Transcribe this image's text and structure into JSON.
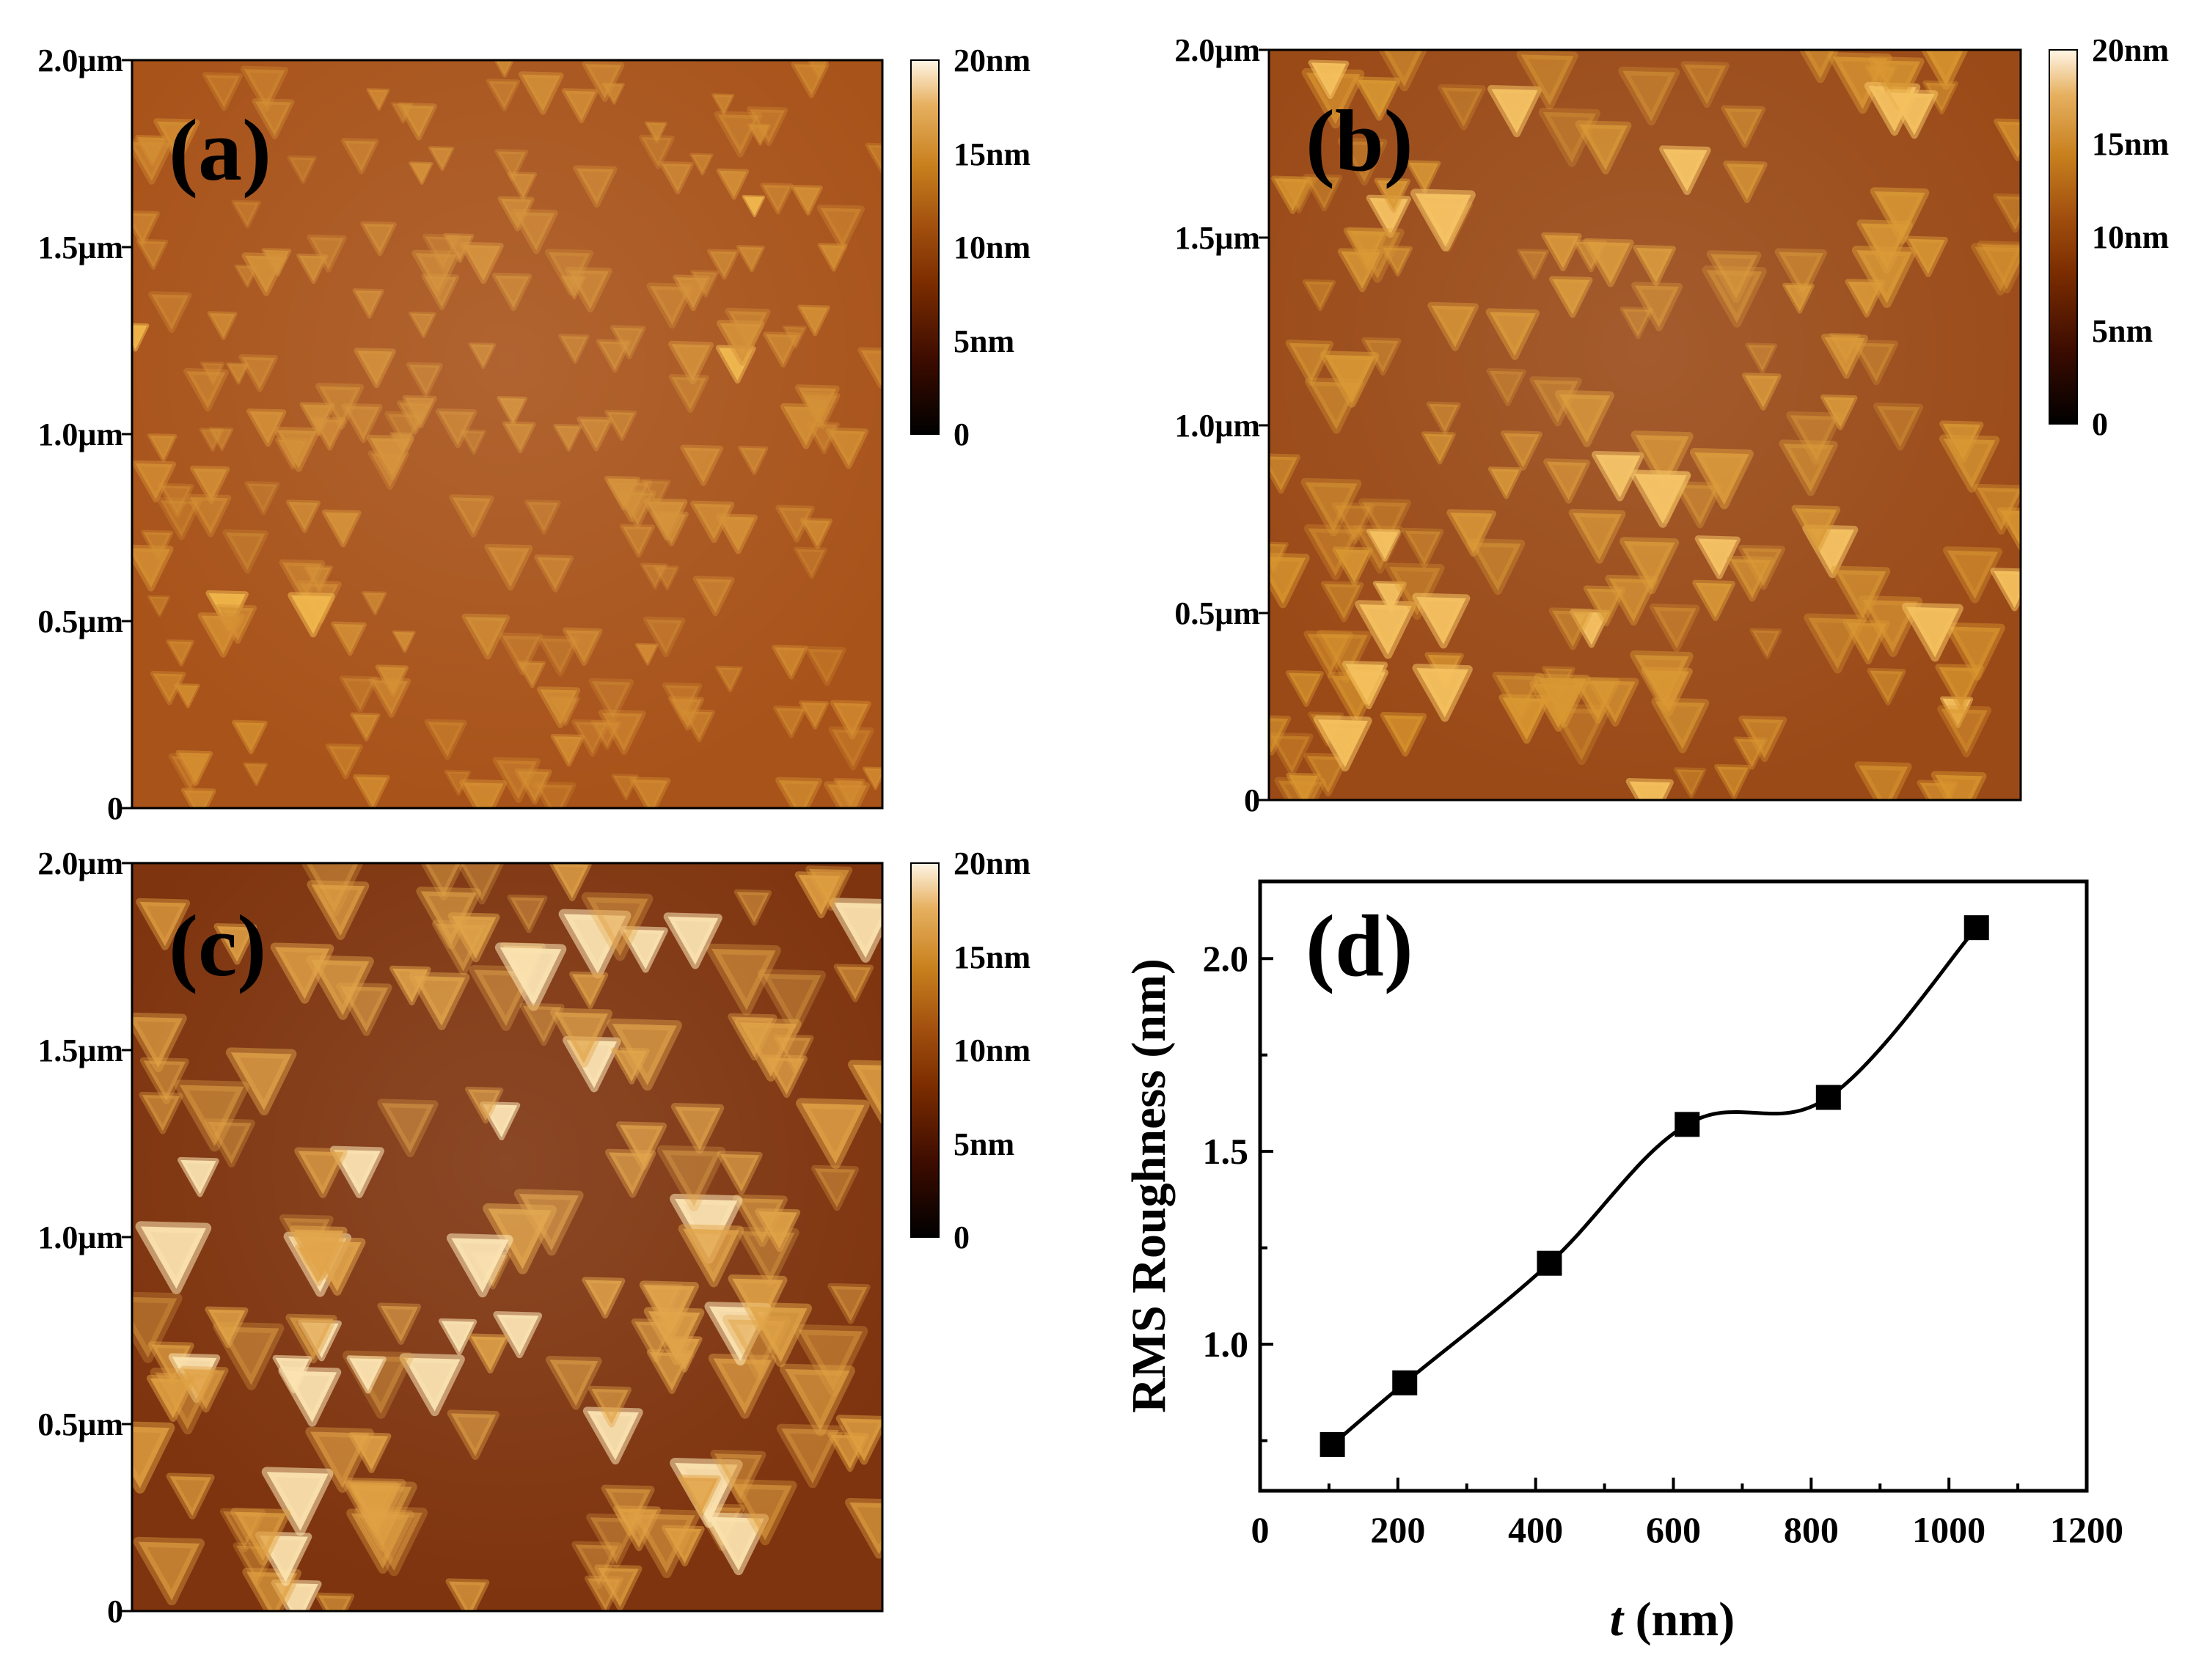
{
  "figure": {
    "colorbar": {
      "ticks": [
        "20nm",
        "15nm",
        "10nm",
        "5nm",
        "0"
      ],
      "range_nm": [
        0,
        20
      ],
      "colors": [
        "#000000",
        "#3d0c00",
        "#7a2c00",
        "#a04e0e",
        "#c8801e",
        "#e6b060",
        "#fff6e6"
      ]
    },
    "afm_panels": [
      {
        "id": "a",
        "label": "(a)",
        "y_ticks": [
          "2.0μm",
          "1.5μm",
          "1.0μm",
          "0.5μm",
          "0"
        ],
        "base_color": "#a8531a",
        "grain_color": "#d48e31",
        "bright_color": "#f0b548"
      },
      {
        "id": "b",
        "label": "(b)",
        "y_ticks": [
          "2.0μm",
          "1.5μm",
          "1.0μm",
          "0.5μm",
          "0"
        ],
        "base_color": "#9a4a17",
        "grain_color": "#d9962f",
        "bright_color": "#f4c05d"
      },
      {
        "id": "c",
        "label": "(c)",
        "y_ticks": [
          "2.0μm",
          "1.5μm",
          "1.0μm",
          "0.5μm",
          "0"
        ],
        "base_color": "#7e340e",
        "grain_color": "#e0a041",
        "bright_color": "#fbe2ae"
      }
    ]
  },
  "chart_data": {
    "type": "line",
    "panel_label": "(d)",
    "xlabel_italic": "t",
    "xlabel_rest": " (nm)",
    "ylabel": "RMS Roughness (nm)",
    "x_ticks": [
      "0",
      "200",
      "400",
      "600",
      "800",
      "1000",
      "1200"
    ],
    "y_ticks": [
      "1.0",
      "1.5",
      "2.0"
    ],
    "xlim": [
      0,
      1200
    ],
    "ylim": [
      0.62,
      2.2
    ],
    "series": [
      {
        "name": "RMS Roughness",
        "marker": "square",
        "color": "#000000",
        "x": [
          105,
          210,
          420,
          620,
          825,
          1040
        ],
        "y": [
          0.74,
          0.9,
          1.21,
          1.57,
          1.64,
          2.08
        ]
      }
    ]
  }
}
